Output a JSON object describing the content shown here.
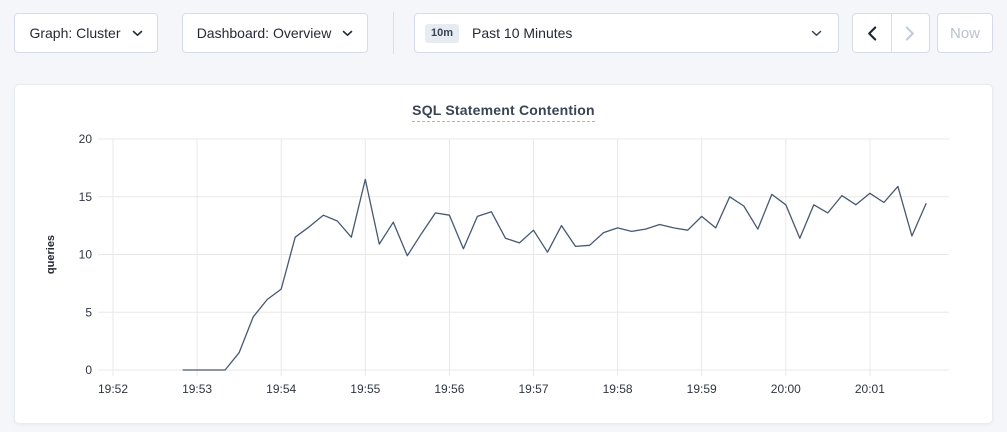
{
  "toolbar": {
    "graph_dropdown_label": "Graph: Cluster",
    "dashboard_dropdown_label": "Dashboard: Overview",
    "time_range": {
      "badge": "10m",
      "selected": "Past 10 Minutes"
    },
    "now_button_label": "Now"
  },
  "chart_data": {
    "type": "line",
    "title": "SQL Statement Contention",
    "ylabel": "queries",
    "ylim": [
      0,
      20
    ],
    "yticks": [
      0,
      5,
      10,
      15,
      20
    ],
    "xtick_labels": [
      "19:52",
      "19:53",
      "19:54",
      "19:55",
      "19:56",
      "19:57",
      "19:58",
      "19:59",
      "20:00",
      "20:01"
    ],
    "grid": true,
    "legend": "none",
    "series": [
      {
        "name": "SQL Statement Contention",
        "color": "#475872",
        "start_time": "19:52:50",
        "interval_seconds": 10,
        "values": [
          0,
          0,
          0,
          0,
          1.5,
          4.6,
          6.1,
          7.0,
          11.5,
          12.4,
          13.4,
          12.9,
          11.5,
          16.5,
          10.9,
          12.8,
          9.9,
          11.8,
          13.6,
          13.4,
          10.5,
          13.3,
          13.7,
          11.4,
          11.0,
          12.1,
          10.2,
          12.5,
          10.7,
          10.8,
          11.9,
          12.3,
          12.0,
          12.2,
          12.6,
          12.3,
          12.1,
          13.3,
          12.3,
          15.0,
          14.2,
          12.2,
          15.2,
          14.3,
          11.4,
          14.3,
          13.6,
          15.1,
          14.3,
          15.3,
          14.5,
          15.9,
          11.6,
          14.4
        ]
      }
    ]
  },
  "colors": {
    "page_background": "#f4f6f9",
    "card_background": "#ffffff",
    "border": "#d6dce6",
    "grid": "#e8e8e8",
    "line": "#475872",
    "text": "#242a35",
    "title": "#394455",
    "disabled": "#c3ccd9"
  }
}
